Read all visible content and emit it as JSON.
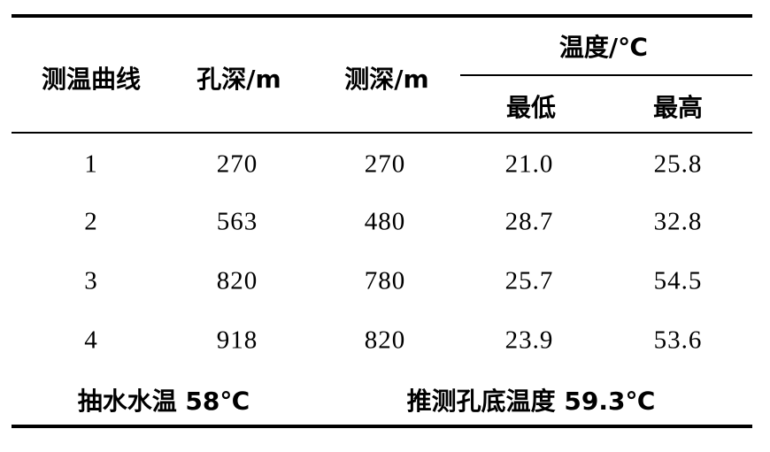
{
  "table": {
    "headers": {
      "curve": "测温曲线",
      "hole_depth": "孔深/m",
      "measure_depth": "测深/m",
      "temperature": "温度/℃",
      "min": "最低",
      "max": "最高"
    },
    "rows": [
      {
        "curve": "1",
        "hole_depth": "270",
        "measure_depth": "270",
        "min": "21.0",
        "max": "25.8"
      },
      {
        "curve": "2",
        "hole_depth": "563",
        "measure_depth": "480",
        "min": "28.7",
        "max": "32.8"
      },
      {
        "curve": "3",
        "hole_depth": "820",
        "measure_depth": "780",
        "min": "25.7",
        "max": "54.5"
      },
      {
        "curve": "4",
        "hole_depth": "918",
        "measure_depth": "820",
        "min": "23.9",
        "max": "53.6"
      }
    ],
    "footer": {
      "pump_water_temp": "抽水水温 58℃",
      "inferred_bottom_temp": "推测孔底温度 59.3℃"
    }
  }
}
